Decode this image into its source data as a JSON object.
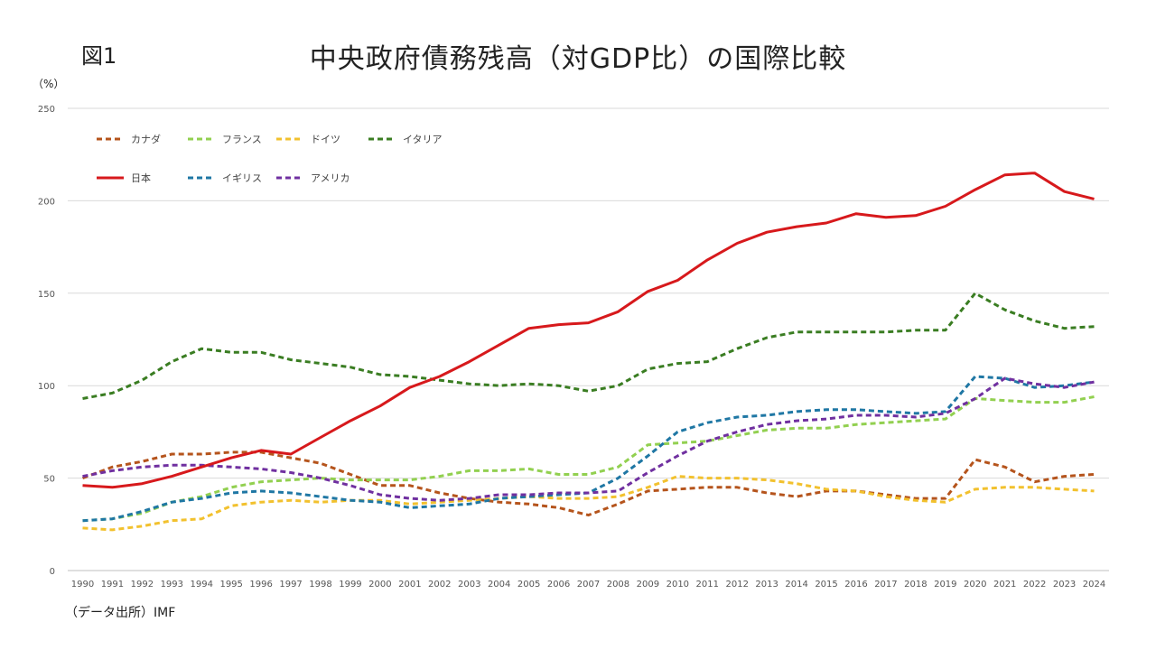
{
  "header": {
    "figure_label": "図1",
    "title": "中央政府債務残高（対GDP比）の国際比較"
  },
  "footer": {
    "source": "（データ出所）IMF"
  },
  "chart_data": {
    "type": "line",
    "title": "中央政府債務残高（対GDP比）の国際比較",
    "ylabel": "（%）",
    "xlabel": "",
    "ylim": [
      0,
      250
    ],
    "yticks": [
      0,
      50,
      100,
      150,
      200,
      250
    ],
    "grid": true,
    "legend_position": "top-left",
    "x": [
      "1990",
      "1991",
      "1992",
      "1993",
      "1994",
      "1995",
      "1996",
      "1997",
      "1998",
      "1999",
      "2000",
      "2001",
      "2002",
      "2003",
      "2004",
      "2005",
      "2006",
      "2007",
      "2008",
      "2009",
      "2010",
      "2011",
      "2012",
      "2013",
      "2014",
      "2015",
      "2016",
      "2017",
      "2018",
      "2019",
      "2020",
      "2021",
      "2022",
      "2023",
      "2024"
    ],
    "series": [
      {
        "name": "カナダ",
        "color": "#b5541c",
        "dashed": true,
        "values": [
          50,
          56,
          59,
          63,
          63,
          64,
          64,
          61,
          58,
          52,
          46,
          46,
          42,
          39,
          37,
          36,
          34,
          30,
          36,
          43,
          44,
          45,
          45,
          42,
          40,
          43,
          43,
          41,
          39,
          39,
          60,
          56,
          48,
          51,
          52
        ]
      },
      {
        "name": "フランス",
        "color": "#92d050",
        "dashed": true,
        "values": [
          27,
          28,
          31,
          37,
          40,
          45,
          48,
          49,
          50,
          49,
          49,
          49,
          51,
          54,
          54,
          55,
          52,
          52,
          56,
          68,
          69,
          70,
          73,
          76,
          77,
          77,
          79,
          80,
          81,
          82,
          93,
          92,
          91,
          91,
          94
        ]
      },
      {
        "name": "ドイツ",
        "color": "#f2c12e",
        "dashed": true,
        "values": [
          23,
          22,
          24,
          27,
          28,
          35,
          37,
          38,
          37,
          38,
          38,
          36,
          37,
          38,
          39,
          40,
          39,
          39,
          40,
          45,
          51,
          50,
          50,
          49,
          47,
          44,
          43,
          40,
          38,
          37,
          44,
          45,
          45,
          44,
          43
        ]
      },
      {
        "name": "イタリア",
        "color": "#3a7d22",
        "dashed": true,
        "values": [
          93,
          96,
          103,
          113,
          120,
          118,
          118,
          114,
          112,
          110,
          106,
          105,
          103,
          101,
          100,
          101,
          100,
          97,
          100,
          109,
          112,
          113,
          120,
          126,
          129,
          129,
          129,
          129,
          130,
          130,
          150,
          141,
          135,
          131,
          132
        ]
      },
      {
        "name": "日本",
        "color": "#d7191c",
        "dashed": false,
        "values": [
          46,
          45,
          47,
          51,
          56,
          61,
          65,
          63,
          72,
          81,
          89,
          99,
          105,
          113,
          122,
          131,
          133,
          134,
          140,
          151,
          157,
          168,
          177,
          183,
          186,
          188,
          193,
          191,
          192,
          197,
          206,
          214,
          215,
          205,
          201
        ]
      },
      {
        "name": "イギリス",
        "color": "#1f77a4",
        "dashed": true,
        "values": [
          27,
          28,
          32,
          37,
          39,
          42,
          43,
          42,
          40,
          38,
          37,
          34,
          35,
          36,
          39,
          40,
          41,
          42,
          50,
          62,
          75,
          80,
          83,
          84,
          86,
          87,
          87,
          86,
          85,
          86,
          105,
          104,
          99,
          100,
          102
        ]
      },
      {
        "name": "アメリカ",
        "color": "#7030a0",
        "dashed": true,
        "values": [
          51,
          54,
          56,
          57,
          57,
          56,
          55,
          53,
          50,
          46,
          41,
          39,
          38,
          39,
          41,
          41,
          42,
          42,
          43,
          53,
          62,
          70,
          75,
          79,
          81,
          82,
          84,
          84,
          83,
          85,
          93,
          104,
          101,
          99,
          102
        ]
      }
    ]
  }
}
